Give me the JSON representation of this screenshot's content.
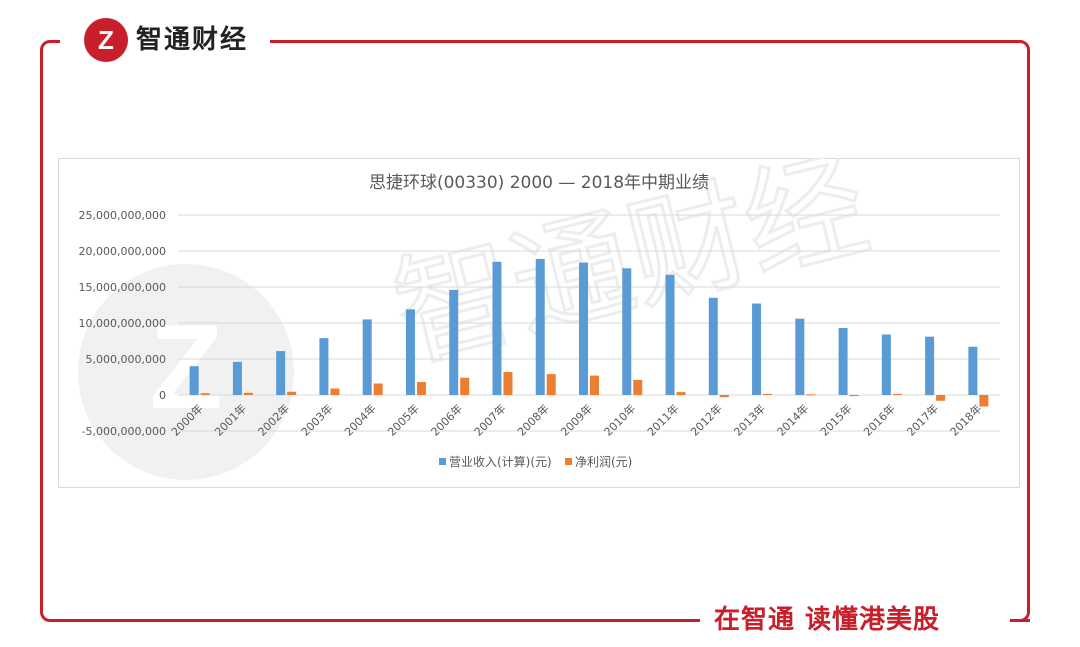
{
  "brand": {
    "name": "智通财经",
    "logo_letter": "Z"
  },
  "slogan": "在智通  读懂港美股",
  "watermark": "智通财经",
  "colors": {
    "frame": "#c8202a",
    "revenue": "#5b9bd5",
    "profit": "#ed7d31"
  },
  "chart_data": {
    "type": "bar",
    "title": "思捷环球(00330)  2000 — 2018年中期业绩",
    "xlabel": "",
    "ylabel": "",
    "ylim": [
      -5000000000,
      25000000000
    ],
    "ytick_values": [
      25000000000,
      20000000000,
      15000000000,
      10000000000,
      5000000000,
      0,
      -5000000000
    ],
    "ytick_labels": [
      "25,000,000,000",
      "20,000,000,000",
      "15,000,000,000",
      "10,000,000,000",
      "5,000,000,000",
      "0",
      "-5,000,000,000"
    ],
    "grid": true,
    "legend_position": "bottom",
    "categories": [
      "2000年",
      "2001年",
      "2002年",
      "2003年",
      "2004年",
      "2005年",
      "2006年",
      "2007年",
      "2008年",
      "2009年",
      "2010年",
      "2011年",
      "2012年",
      "2013年",
      "2014年",
      "2015年",
      "2016年",
      "2017年",
      "2018年"
    ],
    "series": [
      {
        "name": "营业收入(计算)(元)",
        "color": "#5b9bd5",
        "values": [
          4000000000,
          4600000000,
          6100000000,
          7900000000,
          10500000000,
          11900000000,
          14600000000,
          18500000000,
          18900000000,
          18400000000,
          17600000000,
          16700000000,
          13500000000,
          12700000000,
          10600000000,
          9300000000,
          8400000000,
          8100000000,
          6700000000
        ]
      },
      {
        "name": "净利润(元)",
        "color": "#ed7d31",
        "values": [
          250000000,
          300000000,
          450000000,
          900000000,
          1600000000,
          1800000000,
          2400000000,
          3200000000,
          2900000000,
          2700000000,
          2100000000,
          400000000,
          -300000000,
          150000000,
          100000000,
          -150000000,
          150000000,
          -800000000,
          -1600000000
        ]
      }
    ]
  }
}
